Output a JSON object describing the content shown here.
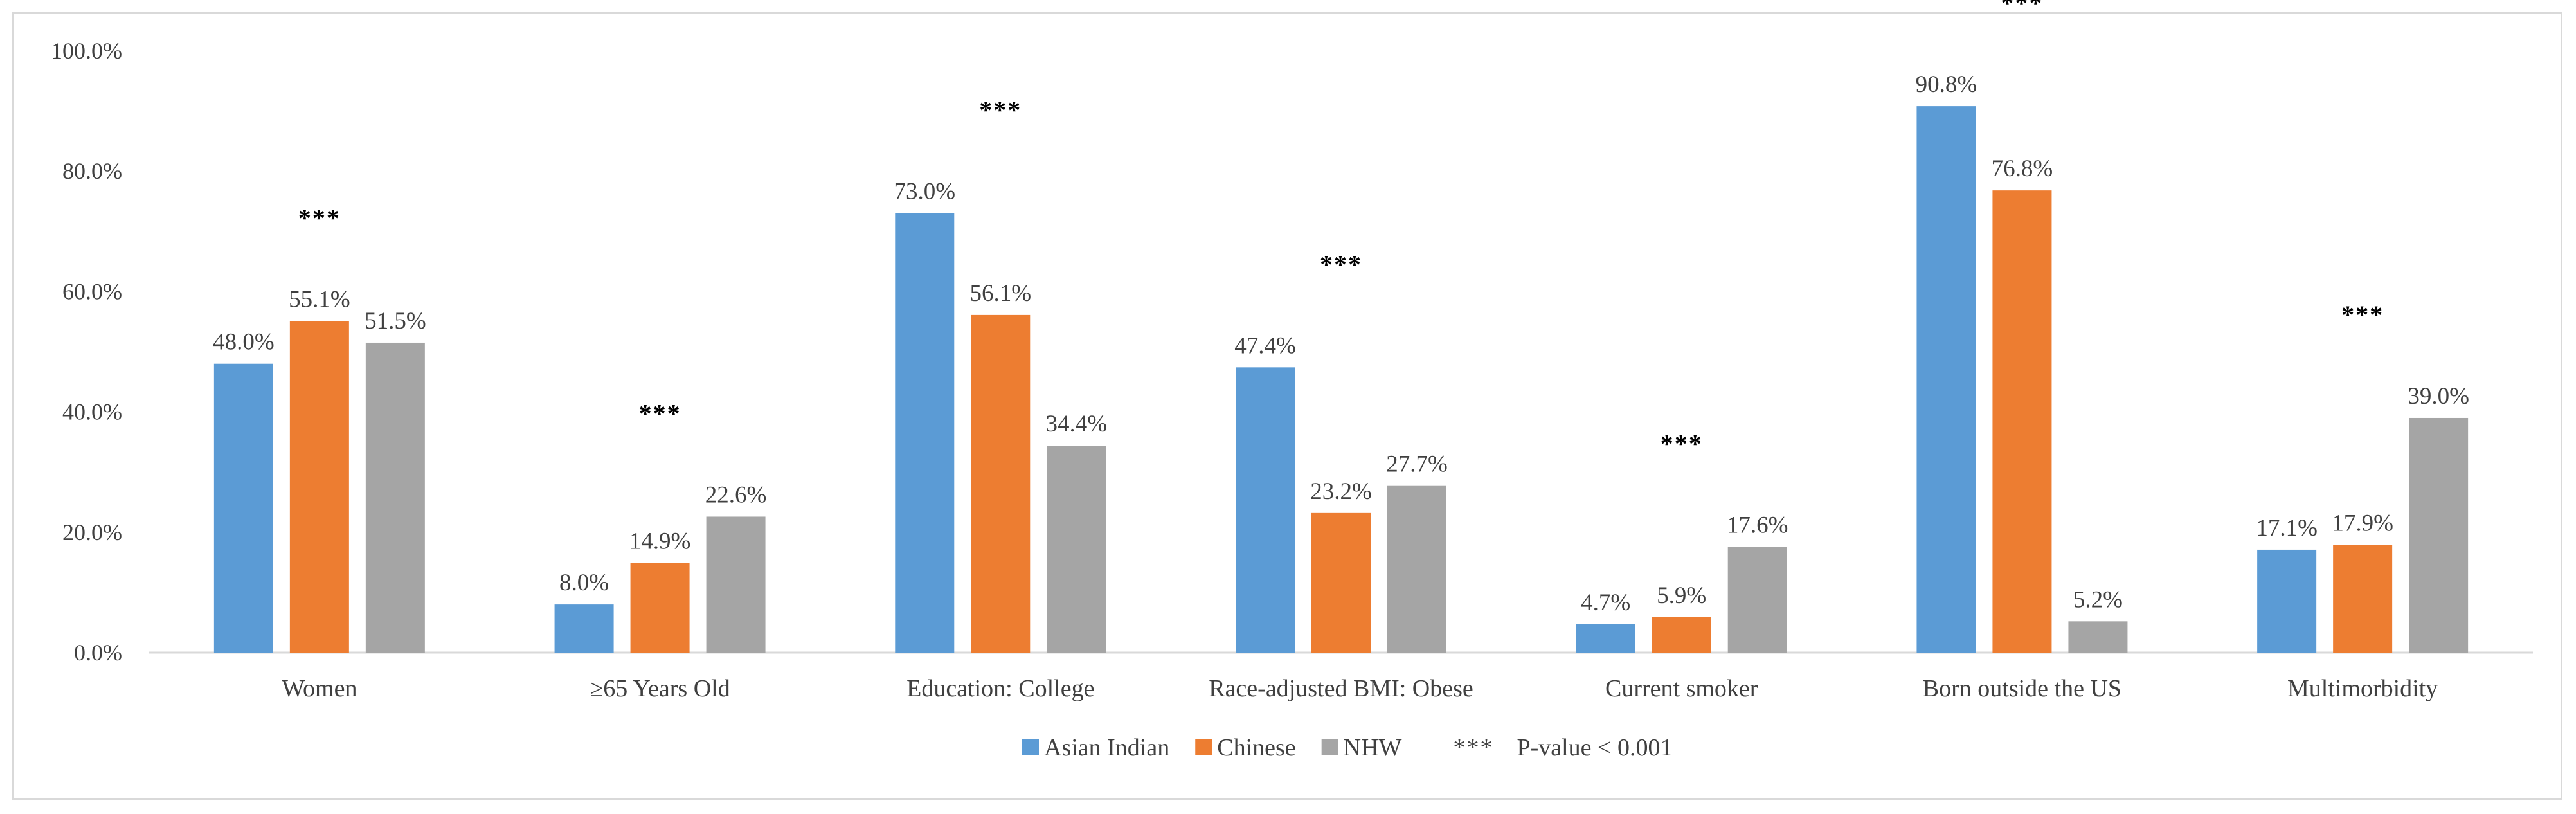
{
  "chart_data": {
    "type": "bar",
    "title": "",
    "xlabel": "",
    "ylabel": "",
    "ylim": [
      0,
      100
    ],
    "yticks": [
      "0.0%",
      "20.0%",
      "40.0%",
      "60.0%",
      "80.0%",
      "100.0%"
    ],
    "categories": [
      "Women",
      "≥65 Years Old",
      "Education: College",
      "Race-adjusted BMI: Obese",
      "Current smoker",
      "Born outside the US",
      "Multimorbidity"
    ],
    "series": [
      {
        "name": "Asian Indian",
        "color": "#5b9bd5",
        "values": [
          48.0,
          8.0,
          73.0,
          47.4,
          4.7,
          90.8,
          17.1
        ],
        "labels": [
          "48.0%",
          "8.0%",
          "73.0%",
          "47.4%",
          "4.7%",
          "90.8%",
          "17.1%"
        ]
      },
      {
        "name": "Chinese",
        "color": "#ed7d31",
        "values": [
          55.1,
          14.9,
          56.1,
          23.2,
          5.9,
          76.8,
          17.9
        ],
        "labels": [
          "55.1%",
          "14.9%",
          "56.1%",
          "23.2%",
          "5.9%",
          "76.8%",
          "17.9%"
        ]
      },
      {
        "name": "NHW",
        "color": "#a5a5a5",
        "values": [
          51.5,
          22.6,
          34.4,
          27.7,
          17.6,
          5.2,
          39.0
        ],
        "labels": [
          "51.5%",
          "22.6%",
          "34.4%",
          "27.7%",
          "17.6%",
          "5.2%",
          "39.0%"
        ]
      }
    ],
    "significance": {
      "marker": "***",
      "categories_marked": [
        "Women",
        "≥65 Years Old",
        "Education: College",
        "Race-adjusted BMI: Obese",
        "Current smoker",
        "Born outside the US",
        "Multimorbidity"
      ],
      "legend_text": "P-value < 0.001"
    },
    "legend_position": "bottom-center",
    "grid": false
  }
}
